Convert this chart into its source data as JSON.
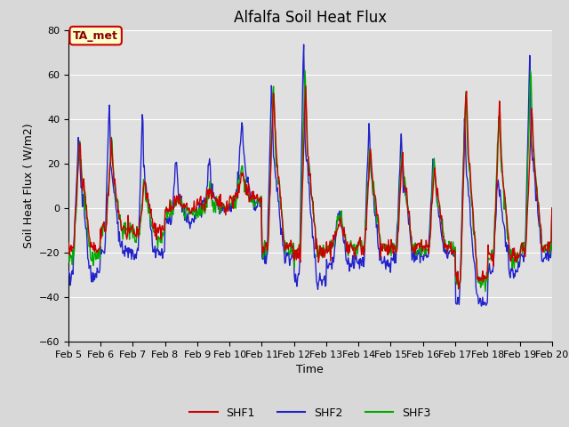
{
  "title": "Alfalfa Soil Heat Flux",
  "xlabel": "Time",
  "ylabel": "Soil Heat Flux ( W/m2)",
  "ylim": [
    -60,
    80
  ],
  "yticks": [
    -60,
    -40,
    -20,
    0,
    20,
    40,
    60,
    80
  ],
  "xtick_labels": [
    "Feb 5",
    "Feb 6",
    "Feb 7",
    "Feb 8",
    "Feb 9",
    "Feb 10",
    "Feb 11",
    "Feb 12",
    "Feb 13",
    "Feb 14",
    "Feb 15",
    "Feb 16",
    "Feb 17",
    "Feb 18",
    "Feb 19",
    "Feb 20"
  ],
  "annotation_text": "TA_met",
  "annotation_box_facecolor": "#ffffcc",
  "annotation_box_edgecolor": "#cc0000",
  "line_colors": {
    "SHF1": "#cc0000",
    "SHF2": "#2222cc",
    "SHF3": "#00aa00"
  },
  "line_width": 1.0,
  "fig_bg": "#d8d8d8",
  "ax_bg": "#e0e0e0",
  "grid_color": "#ffffff",
  "title_fontsize": 12,
  "label_fontsize": 9,
  "tick_fontsize": 8
}
